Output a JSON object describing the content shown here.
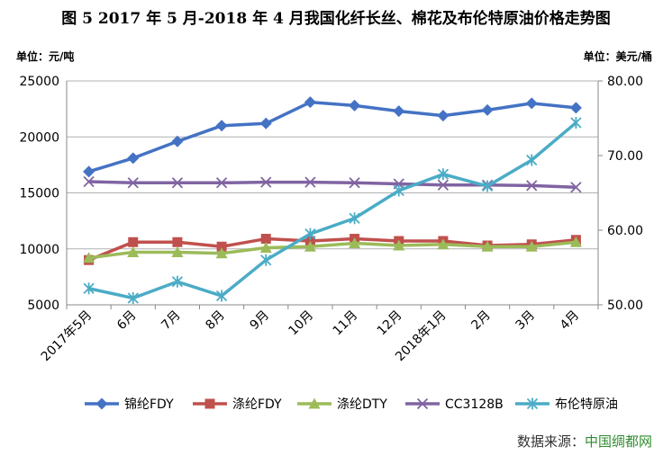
{
  "title": "图 5   2017 年 5 月-2018 年 4 月我国化纤长丝、棉花及布伦特原油价格走势图",
  "unit_left": "单位：元/吨",
  "unit_right": "单位：美元/桶",
  "source_label": "数据来源：",
  "source_name": "中国绸都网",
  "chart_data": {
    "type": "line",
    "categories": [
      "2017年5月",
      "6月",
      "7月",
      "8月",
      "9月",
      "10月",
      "11月",
      "12月",
      "2018年1月",
      "2月",
      "3月",
      "4月"
    ],
    "y_left": {
      "ticks": [
        5000,
        10000,
        15000,
        20000,
        25000
      ],
      "range": [
        5000,
        25000
      ]
    },
    "y_right": {
      "ticks": [
        "50.00",
        "60.00",
        "70.00",
        "80.00"
      ],
      "range": [
        50,
        80
      ]
    },
    "grid": true,
    "legend_position": "bottom",
    "series": [
      {
        "name": "锦纶FDY",
        "axis": "left",
        "color": "#4472c4",
        "marker": "diamond",
        "values": [
          16900,
          18100,
          19600,
          21000,
          21200,
          23100,
          22800,
          22300,
          21900,
          22400,
          23000,
          22600
        ]
      },
      {
        "name": "涤纶FDY",
        "axis": "left",
        "color": "#c0504d",
        "marker": "square",
        "values": [
          9000,
          10600,
          10600,
          10200,
          10900,
          10700,
          10900,
          10700,
          10700,
          10300,
          10400,
          10800
        ]
      },
      {
        "name": "涤纶DTY",
        "axis": "left",
        "color": "#9bbb59",
        "marker": "triangle",
        "values": [
          9200,
          9700,
          9700,
          9600,
          10100,
          10200,
          10500,
          10300,
          10400,
          10200,
          10200,
          10600
        ]
      },
      {
        "name": "CC3128B",
        "axis": "left",
        "color": "#8064a2",
        "marker": "x",
        "values": [
          16000,
          15900,
          15900,
          15900,
          15950,
          15950,
          15900,
          15800,
          15700,
          15700,
          15650,
          15500
        ]
      },
      {
        "name": "布伦特原油",
        "axis": "right",
        "color": "#4bacc6",
        "marker": "star",
        "values": [
          52.2,
          50.9,
          53.1,
          51.2,
          56.0,
          59.5,
          61.6,
          65.3,
          67.5,
          65.9,
          69.4,
          74.4
        ]
      }
    ]
  }
}
